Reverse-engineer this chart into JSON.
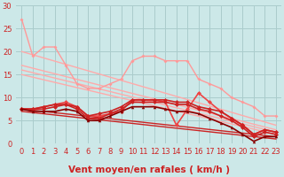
{
  "title": "",
  "xlabel": "Vent moyen/en rafales ( km/h )",
  "ylabel": "",
  "xlim": [
    -0.5,
    23.5
  ],
  "ylim": [
    0,
    30
  ],
  "yticks": [
    0,
    5,
    10,
    15,
    20,
    25,
    30
  ],
  "xticks": [
    0,
    1,
    2,
    3,
    4,
    5,
    6,
    7,
    8,
    9,
    10,
    11,
    12,
    13,
    14,
    15,
    16,
    17,
    18,
    19,
    20,
    21,
    22,
    23
  ],
  "bg_color": "#cce8e8",
  "grid_color": "#aacccc",
  "lines": [
    {
      "x": [
        0,
        1,
        2,
        3,
        4,
        5,
        6,
        7,
        8,
        9,
        10,
        11,
        12,
        13,
        14,
        15,
        16,
        17,
        18,
        19,
        20,
        21,
        22,
        23
      ],
      "y": [
        27,
        19,
        21,
        21,
        17,
        13,
        12,
        12,
        13,
        14,
        18,
        19,
        19,
        18,
        18,
        18,
        14,
        13,
        12,
        10,
        9,
        8,
        6,
        6
      ],
      "color": "#ff9999",
      "lw": 1.0,
      "marker": "D",
      "ms": 2.0,
      "zorder": 3
    },
    {
      "x": [
        0,
        23
      ],
      "y": [
        20,
        4
      ],
      "color": "#ffaaaa",
      "lw": 1.0,
      "marker": "none",
      "ms": 0,
      "zorder": 2
    },
    {
      "x": [
        0,
        23
      ],
      "y": [
        17,
        3
      ],
      "color": "#ffaaaa",
      "lw": 1.0,
      "marker": "none",
      "ms": 0,
      "zorder": 2
    },
    {
      "x": [
        0,
        23
      ],
      "y": [
        16,
        2.5
      ],
      "color": "#ffaaaa",
      "lw": 1.0,
      "marker": "none",
      "ms": 0,
      "zorder": 2
    },
    {
      "x": [
        0,
        23
      ],
      "y": [
        15,
        2
      ],
      "color": "#ffaaaa",
      "lw": 1.0,
      "marker": "none",
      "ms": 0,
      "zorder": 2
    },
    {
      "x": [
        0,
        1,
        2,
        3,
        4,
        5,
        6,
        7,
        8,
        9,
        10,
        11,
        12,
        13,
        14,
        15,
        16,
        17,
        18,
        19,
        20,
        21,
        22,
        23
      ],
      "y": [
        7.5,
        7.5,
        8,
        8.5,
        9,
        8,
        6,
        6,
        6.5,
        7,
        9.5,
        9.5,
        9.5,
        9,
        4,
        7.5,
        11,
        9,
        7,
        5.5,
        4,
        2,
        3,
        2.5
      ],
      "color": "#ee4444",
      "lw": 1.2,
      "marker": "D",
      "ms": 2.5,
      "zorder": 4
    },
    {
      "x": [
        0,
        1,
        2,
        3,
        4,
        5,
        6,
        7,
        8,
        9,
        10,
        11,
        12,
        13,
        14,
        15,
        16,
        17,
        18,
        19,
        20,
        21,
        22,
        23
      ],
      "y": [
        7.5,
        7.5,
        8,
        8.5,
        8.5,
        8,
        6,
        6.5,
        7,
        8,
        9.5,
        9.5,
        9.5,
        9.5,
        9,
        9,
        8,
        7.5,
        7,
        5.5,
        4,
        2,
        3,
        2.5
      ],
      "color": "#cc2222",
      "lw": 1.2,
      "marker": "D",
      "ms": 2.5,
      "zorder": 4
    },
    {
      "x": [
        0,
        1,
        2,
        3,
        4,
        5,
        6,
        7,
        8,
        9,
        10,
        11,
        12,
        13,
        14,
        15,
        16,
        17,
        18,
        19,
        20,
        21,
        22,
        23
      ],
      "y": [
        7.5,
        7.5,
        7.5,
        8,
        8.5,
        7.5,
        5.5,
        5.5,
        6.5,
        7.5,
        9,
        9,
        9,
        9,
        8.5,
        8.5,
        7.5,
        7,
        6,
        5,
        3.5,
        1.5,
        2.5,
        2
      ],
      "color": "#cc2222",
      "lw": 1.2,
      "marker": "D",
      "ms": 2.5,
      "zorder": 4
    },
    {
      "x": [
        0,
        1,
        2,
        3,
        4,
        5,
        6,
        7,
        8,
        9,
        10,
        11,
        12,
        13,
        14,
        15,
        16,
        17,
        18,
        19,
        20,
        21,
        22,
        23
      ],
      "y": [
        7.5,
        7,
        7,
        7,
        7.5,
        7,
        5,
        5,
        6,
        7,
        8,
        8,
        8,
        7.5,
        7,
        7,
        6.5,
        5.5,
        4.5,
        3.5,
        2,
        0.5,
        1.5,
        1.5
      ],
      "color": "#880000",
      "lw": 1.2,
      "marker": "^",
      "ms": 2.5,
      "zorder": 4
    },
    {
      "x": [
        0,
        23
      ],
      "y": [
        7.5,
        1.5
      ],
      "color": "#cc2222",
      "lw": 1.0,
      "marker": "none",
      "ms": 0,
      "zorder": 3
    },
    {
      "x": [
        0,
        23
      ],
      "y": [
        7.0,
        1.0
      ],
      "color": "#cc2222",
      "lw": 1.0,
      "marker": "none",
      "ms": 0,
      "zorder": 3
    }
  ],
  "xlabel_color": "#cc2222",
  "xlabel_fontsize": 7.5,
  "tick_fontsize": 6,
  "tick_color": "#cc2222",
  "fig_w": 3.2,
  "fig_h": 2.0,
  "dpi": 100
}
